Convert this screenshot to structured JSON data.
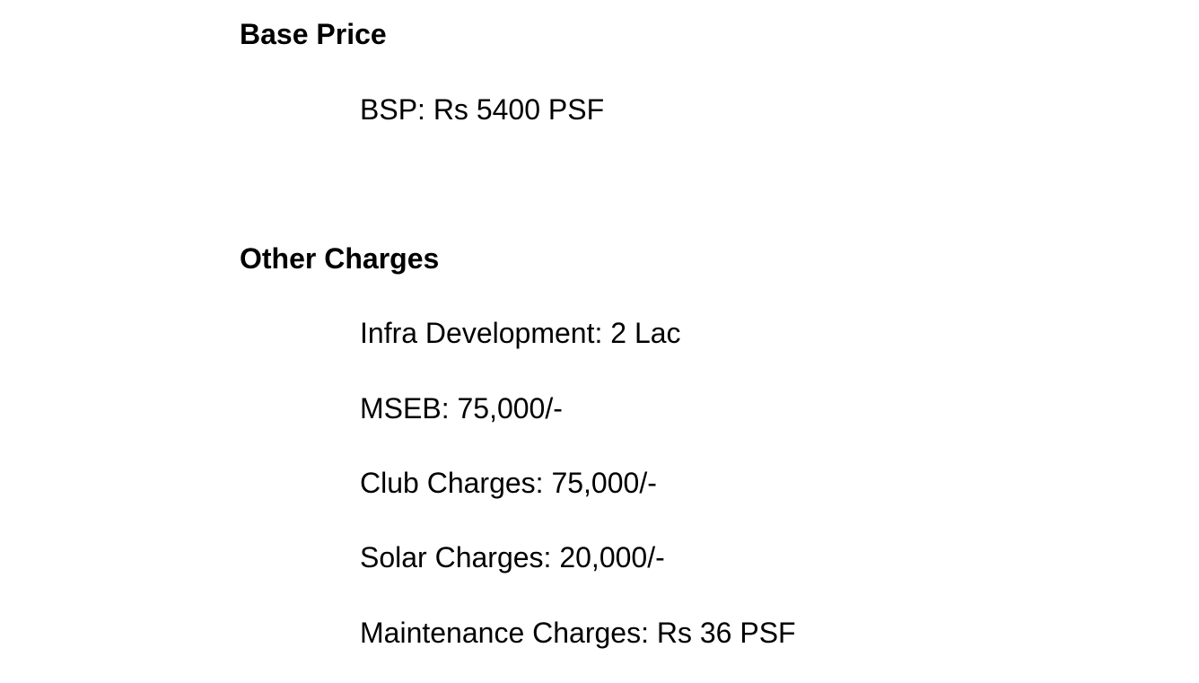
{
  "sections": [
    {
      "heading": "Base Price",
      "items": [
        "BSP: Rs 5400 PSF"
      ]
    },
    {
      "heading": "Other Charges",
      "items": [
        "Infra Development: 2 Lac",
        "MSEB: 75,000/-",
        "Club Charges: 75,000/-",
        "Solar Charges: 20,000/-",
        "Maintenance Charges: Rs 36 PSF"
      ]
    }
  ]
}
